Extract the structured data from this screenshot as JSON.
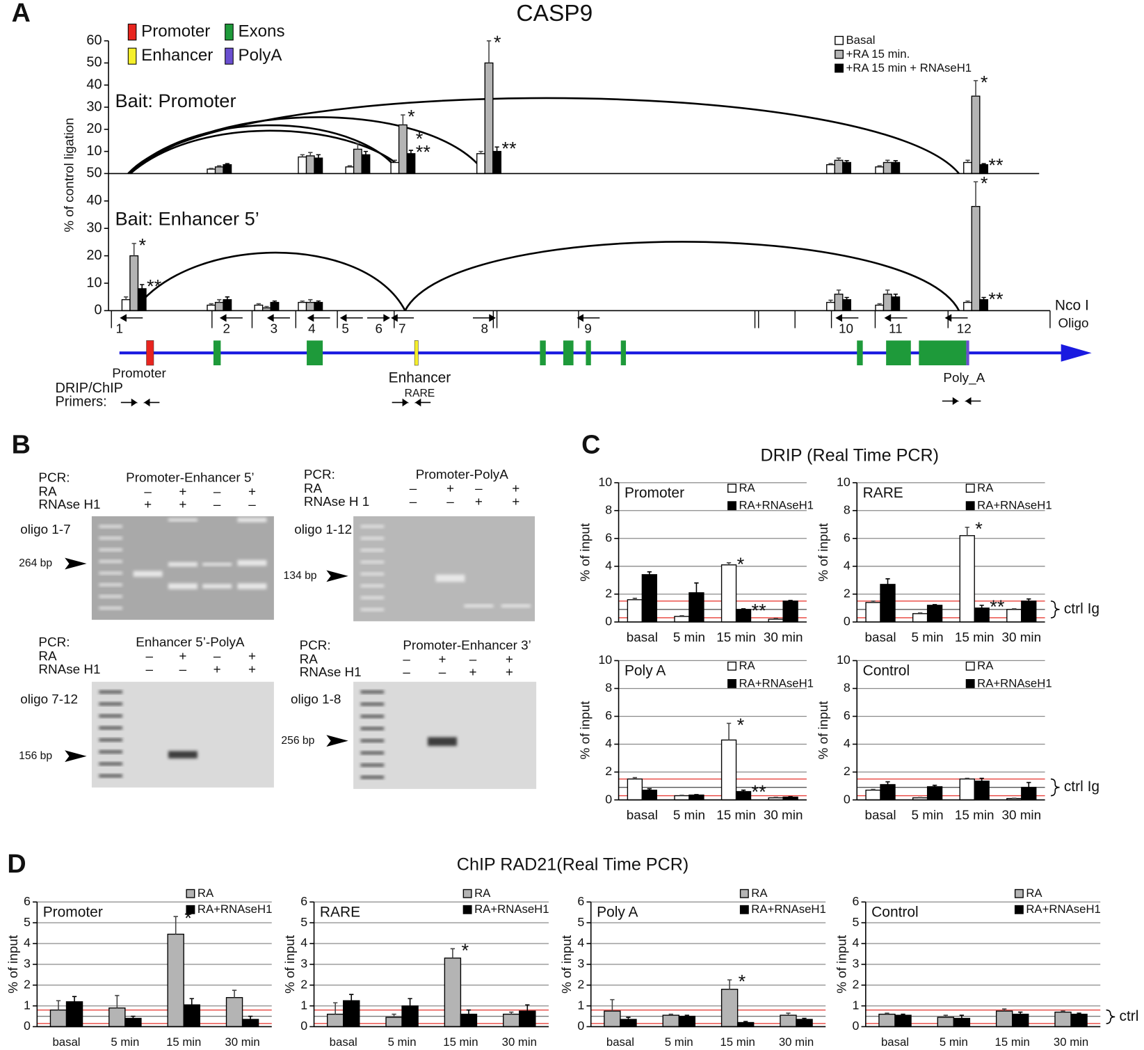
{
  "panel_labels": [
    "A",
    "B",
    "C",
    "D"
  ],
  "headings": {
    "A": "CASP9",
    "C": "DRIP (Real Time PCR)",
    "D": "ChIP RAD21(Real Time PCR)"
  },
  "chart_data": [
    {
      "type": "bar",
      "label": "Bait: Promoter",
      "y_label": "% of control ligation",
      "categories": [
        "1",
        "2",
        "3",
        "4",
        "5",
        "6",
        "7",
        "8",
        "9",
        "10",
        "11",
        "12"
      ],
      "ylim": [
        0,
        60
      ],
      "yticks": [
        10,
        20,
        30,
        40,
        50,
        60
      ],
      "grid": false,
      "series": [
        {
          "name": "Basal",
          "color": "#ffffff",
          "values": [
            null,
            2,
            null,
            7.5,
            3,
            null,
            5,
            9,
            null,
            4,
            3,
            5
          ],
          "errors": [
            null,
            0.3,
            null,
            1,
            0.5,
            null,
            1,
            1,
            null,
            0.5,
            0.5,
            1
          ]
        },
        {
          "name": "+RA 15 min.",
          "color": "#b4b4b4",
          "values": [
            null,
            3,
            null,
            8,
            11,
            null,
            22,
            50,
            null,
            6,
            5,
            35
          ],
          "errors": [
            null,
            0.5,
            null,
            1.5,
            2.5,
            null,
            4.5,
            10,
            null,
            1,
            1,
            7
          ]
        },
        {
          "name": "+RA 15 min + RNAseH1",
          "color": "#000000",
          "values": [
            null,
            4,
            null,
            7,
            8.5,
            null,
            9,
            10,
            null,
            5,
            5,
            4
          ],
          "errors": [
            null,
            0.5,
            null,
            1.5,
            1.5,
            null,
            1.5,
            2,
            null,
            0.8,
            0.8,
            0.5
          ]
        }
      ],
      "annotations": [
        {
          "text": "*",
          "x": "7",
          "series": "+RA 15 min."
        },
        {
          "text": "**",
          "x": "7",
          "series": "+RA 15 min + RNAseH1"
        },
        {
          "text": "*",
          "x": "7",
          "series": "+RA 15 min + RNAseH1"
        },
        {
          "text": "*",
          "x": "8",
          "series": "+RA 15 min."
        },
        {
          "text": "**",
          "x": "8",
          "series": "+RA 15 min + RNAseH1"
        },
        {
          "text": "*",
          "x": "12",
          "series": "+RA 15 min."
        },
        {
          "text": "**",
          "x": "12",
          "series": "+RA 15 min + RNAseH1"
        }
      ]
    },
    {
      "type": "bar",
      "label": "Bait: Enhancer 5’",
      "categories": [
        "1",
        "2",
        "3",
        "4",
        "5",
        "6",
        "7",
        "8",
        "9",
        "10",
        "11",
        "12"
      ],
      "ylim": [
        0,
        50
      ],
      "yticks": [
        0,
        10,
        20,
        30,
        40,
        50
      ],
      "grid": false,
      "series": [
        {
          "color": "#ffffff",
          "values": [
            4,
            2,
            2,
            3,
            null,
            null,
            null,
            null,
            null,
            3,
            2,
            3
          ],
          "errors": [
            1,
            0.5,
            0.5,
            0.5,
            null,
            null,
            null,
            null,
            null,
            0.8,
            0.5,
            0.5
          ]
        },
        {
          "color": "#b4b4b4",
          "values": [
            20,
            3,
            1,
            3,
            null,
            null,
            null,
            null,
            null,
            6,
            6,
            38
          ],
          "errors": [
            4.5,
            1,
            0.5,
            1,
            null,
            null,
            null,
            null,
            null,
            1.5,
            1.5,
            9
          ]
        },
        {
          "color": "#000000",
          "values": [
            8,
            4,
            3,
            3,
            null,
            null,
            null,
            null,
            null,
            4,
            5,
            4
          ],
          "errors": [
            1.5,
            1,
            0.5,
            0.5,
            null,
            null,
            null,
            null,
            null,
            0.8,
            1,
            0.8
          ]
        }
      ],
      "annotations": [
        {
          "text": "*",
          "x": "1",
          "series": 1
        },
        {
          "text": "**",
          "x": "1",
          "series": 2
        },
        {
          "text": "*",
          "x": "12",
          "series": 1
        },
        {
          "text": "**",
          "x": "12",
          "series": 2
        }
      ]
    },
    {
      "type": "bar",
      "label": "Promoter",
      "y_label": "% of input",
      "categories": [
        "basal",
        "5 min",
        "15 min",
        "30 min"
      ],
      "ylim": [
        0,
        10
      ],
      "yticks": [
        0,
        2,
        4,
        6,
        8,
        10
      ],
      "grid": true,
      "ref_lines": [
        {
          "value": 1.5,
          "color": "#e8403a"
        },
        {
          "value": 0.9,
          "color": "#555555"
        },
        {
          "value": 0.3,
          "color": "#e8403a"
        }
      ],
      "series": [
        {
          "name": "RA",
          "color": "#ffffff",
          "values": [
            1.6,
            0.4,
            4.1,
            0.2
          ],
          "errors": [
            0.1,
            0.05,
            0.15,
            0.05
          ]
        },
        {
          "name": "RA+RNAseH1",
          "color": "#000000",
          "values": [
            3.4,
            2.1,
            0.9,
            1.5
          ],
          "errors": [
            0.2,
            0.7,
            0.05,
            0.05
          ]
        }
      ],
      "annotations": [
        {
          "text": "*",
          "x": "15 min",
          "series": "RA"
        },
        {
          "text": "**",
          "x": "15 min",
          "series": "RA+RNAseH1"
        }
      ]
    },
    {
      "type": "bar",
      "label": "RARE",
      "y_label": "% of input",
      "ref_label": "ctrl Ig",
      "categories": [
        "basal",
        "5 min",
        "15 min",
        "30 min"
      ],
      "ylim": [
        0,
        10
      ],
      "yticks": [
        0,
        2,
        4,
        6,
        8,
        10
      ],
      "grid": true,
      "ref_lines": [
        {
          "value": 1.5,
          "color": "#e8403a"
        },
        {
          "value": 0.9,
          "color": "#555555"
        },
        {
          "value": 0.3,
          "color": "#e8403a"
        }
      ],
      "series": [
        {
          "name": "RA",
          "color": "#ffffff",
          "values": [
            1.4,
            0.6,
            6.2,
            0.9
          ],
          "errors": [
            0.1,
            0.05,
            0.6,
            0.05
          ]
        },
        {
          "name": "RA+RNAseH1",
          "color": "#000000",
          "values": [
            2.7,
            1.2,
            1.0,
            1.5
          ],
          "errors": [
            0.4,
            0.05,
            0.2,
            0.15
          ]
        }
      ],
      "annotations": [
        {
          "text": "*",
          "x": "15 min",
          "series": "RA"
        },
        {
          "text": "**",
          "x": "15 min",
          "series": "RA+RNAseH1"
        }
      ]
    },
    {
      "type": "bar",
      "label": "Poly A",
      "y_label": "% of input",
      "categories": [
        "basal",
        "5 min",
        "15 min",
        "30 min"
      ],
      "ylim": [
        0,
        10
      ],
      "yticks": [
        0,
        2,
        4,
        6,
        8,
        10
      ],
      "grid": true,
      "ref_lines": [
        {
          "value": 1.5,
          "color": "#e8403a"
        },
        {
          "value": 0.9,
          "color": "#555555"
        },
        {
          "value": 0.3,
          "color": "#e8403a"
        }
      ],
      "series": [
        {
          "name": "RA",
          "color": "#ffffff",
          "values": [
            1.5,
            0.3,
            4.3,
            0.15
          ],
          "errors": [
            0.1,
            0.03,
            1.2,
            0.03
          ]
        },
        {
          "name": "RA+RNAseH1",
          "color": "#000000",
          "values": [
            0.7,
            0.35,
            0.6,
            0.2
          ],
          "errors": [
            0.1,
            0.03,
            0.1,
            0.03
          ]
        }
      ],
      "annotations": [
        {
          "text": "*",
          "x": "15 min",
          "series": "RA"
        },
        {
          "text": "**",
          "x": "15 min",
          "series": "RA+RNAseH1"
        }
      ]
    },
    {
      "type": "bar",
      "label": "Control",
      "y_label": "% of input",
      "ref_label": "ctrl Ig",
      "categories": [
        "basal",
        "5 min",
        "15 min",
        "30 min"
      ],
      "ylim": [
        0,
        10
      ],
      "yticks": [
        0,
        2,
        4,
        6,
        8,
        10
      ],
      "grid": true,
      "ref_lines": [
        {
          "value": 1.5,
          "color": "#e8403a"
        },
        {
          "value": 0.9,
          "color": "#555555"
        },
        {
          "value": 0.3,
          "color": "#e8403a"
        }
      ],
      "series": [
        {
          "name": "RA",
          "color": "#ffffff",
          "values": [
            0.7,
            0.15,
            1.5,
            0.1
          ],
          "errors": [
            0.05,
            0.02,
            0.05,
            0.02
          ]
        },
        {
          "name": "RA+RNAseH1",
          "color": "#000000",
          "values": [
            1.1,
            0.95,
            1.35,
            0.9
          ],
          "errors": [
            0.2,
            0.1,
            0.2,
            0.35
          ]
        }
      ]
    },
    {
      "type": "bar",
      "label": "Promoter",
      "y_label": "% of input",
      "categories": [
        "basal",
        "5 min",
        "15 min",
        "30 min"
      ],
      "ylim": [
        0,
        6
      ],
      "yticks": [
        0,
        1,
        2,
        3,
        4,
        5,
        6
      ],
      "grid": true,
      "ref_lines": [
        {
          "value": 0.8,
          "color": "#e8403a"
        },
        {
          "value": 0.5,
          "color": "#777777"
        },
        {
          "value": 0.15,
          "color": "#e8403a"
        }
      ],
      "series": [
        {
          "name": "RA",
          "color": "#b4b4b4",
          "values": [
            0.8,
            0.9,
            4.45,
            1.4
          ],
          "errors": [
            0.45,
            0.6,
            0.85,
            0.35
          ]
        },
        {
          "name": "RA+RNAseH1",
          "color": "#000000",
          "values": [
            1.2,
            0.4,
            1.05,
            0.35
          ],
          "errors": [
            0.25,
            0.1,
            0.3,
            0.15
          ]
        }
      ],
      "annotations": [
        {
          "text": "*",
          "x": "15 min",
          "series": "RA"
        }
      ]
    },
    {
      "type": "bar",
      "label": "RARE",
      "y_label": "% of input",
      "categories": [
        "basal",
        "5 min",
        "15 min",
        "30 min"
      ],
      "ylim": [
        0,
        6
      ],
      "yticks": [
        0,
        1,
        2,
        3,
        4,
        5,
        6
      ],
      "grid": true,
      "ref_lines": [
        {
          "value": 0.8,
          "color": "#e8403a"
        },
        {
          "value": 0.5,
          "color": "#777777"
        },
        {
          "value": 0.15,
          "color": "#e8403a"
        }
      ],
      "series": [
        {
          "name": "RA",
          "color": "#b4b4b4",
          "values": [
            0.6,
            0.45,
            3.3,
            0.6
          ],
          "errors": [
            0.55,
            0.15,
            0.45,
            0.1
          ]
        },
        {
          "name": "RA+RNAseH1",
          "color": "#000000",
          "values": [
            1.25,
            1.0,
            0.6,
            0.75
          ],
          "errors": [
            0.3,
            0.35,
            0.2,
            0.3
          ]
        }
      ],
      "annotations": [
        {
          "text": "*",
          "x": "15 min",
          "series": "RA"
        }
      ]
    },
    {
      "type": "bar",
      "label": "Poly A",
      "y_label": "% of input",
      "categories": [
        "basal",
        "5 min",
        "15 min",
        "30 min"
      ],
      "ylim": [
        0,
        6
      ],
      "yticks": [
        0,
        1,
        2,
        3,
        4,
        5,
        6
      ],
      "grid": true,
      "ref_lines": [
        {
          "value": 0.8,
          "color": "#e8403a"
        },
        {
          "value": 0.5,
          "color": "#777777"
        },
        {
          "value": 0.15,
          "color": "#e8403a"
        }
      ],
      "series": [
        {
          "name": "RA",
          "color": "#b4b4b4",
          "values": [
            0.75,
            0.55,
            1.8,
            0.55
          ],
          "errors": [
            0.55,
            0.05,
            0.45,
            0.1
          ]
        },
        {
          "name": "RA+RNAseH1",
          "color": "#000000",
          "values": [
            0.35,
            0.5,
            0.2,
            0.35
          ],
          "errors": [
            0.1,
            0.05,
            0.05,
            0.05
          ]
        }
      ],
      "annotations": [
        {
          "text": "*",
          "x": "15 min",
          "series": "RA"
        }
      ]
    },
    {
      "type": "bar",
      "label": "Control",
      "y_label": "% of input",
      "ref_label": "ctrl Ig",
      "categories": [
        "basal",
        "5 min",
        "15 min",
        "30 min"
      ],
      "ylim": [
        0,
        6
      ],
      "yticks": [
        0,
        1,
        2,
        3,
        4,
        5,
        6
      ],
      "grid": true,
      "ref_lines": [
        {
          "value": 0.8,
          "color": "#e8403a"
        },
        {
          "value": 0.5,
          "color": "#777777"
        },
        {
          "value": 0.15,
          "color": "#e8403a"
        }
      ],
      "series": [
        {
          "name": "RA",
          "color": "#b4b4b4",
          "values": [
            0.6,
            0.45,
            0.75,
            0.7
          ],
          "errors": [
            0.05,
            0.1,
            0.1,
            0.05
          ]
        },
        {
          "name": "RA+RNAseH1",
          "color": "#000000",
          "values": [
            0.55,
            0.4,
            0.6,
            0.6
          ],
          "errors": [
            0.05,
            0.15,
            0.1,
            0.05
          ]
        }
      ]
    }
  ],
  "gene_map": {
    "regions": [
      {
        "name": "Promoter",
        "color": "#e8251f"
      },
      {
        "name": "Enhancer",
        "color": "#f5ef2a"
      },
      {
        "name": "Exons",
        "color": "#1e9a3a"
      },
      {
        "name": "PolyA",
        "color": "#6a4fd0"
      }
    ],
    "axis_labels": [
      "Nco I",
      "Oligo"
    ],
    "features": [
      "Promoter",
      "Enhancer",
      "RARE",
      "Poly_A"
    ],
    "primers_label": [
      "DRIP/ChIP",
      "Primers:"
    ]
  },
  "gels": [
    {
      "pcr": "PCR:",
      "title": "Promoter-Enhancer 5’",
      "rows": [
        {
          "name": "RA",
          "signs": [
            "–",
            "+",
            "–",
            "+"
          ]
        },
        {
          "name": "RNAse H1",
          "signs": [
            "+",
            "+",
            "–",
            "–"
          ]
        }
      ],
      "oligo": "oligo 1-7",
      "size": "264 bp"
    },
    {
      "pcr": "PCR:",
      "title": "Promoter-PolyA",
      "rows": [
        {
          "name": "RA",
          "signs": [
            "–",
            "+",
            "–",
            "+"
          ]
        },
        {
          "name": "RNAse H 1",
          "signs": [
            "–",
            "–",
            "+",
            "+"
          ]
        }
      ],
      "oligo": "oligo 1-12",
      "size": "134 bp"
    },
    {
      "pcr": "PCR:",
      "title": "Enhancer 5’-PolyA",
      "rows": [
        {
          "name": "RA",
          "signs": [
            "–",
            "+",
            "–",
            "+"
          ]
        },
        {
          "name": "RNAse H1",
          "signs": [
            "–",
            "–",
            "+",
            "+"
          ]
        }
      ],
      "oligo": "oligo 7-12",
      "size": "156 bp"
    },
    {
      "pcr": "PCR:",
      "title": "Promoter-Enhancer 3’",
      "rows": [
        {
          "name": "RA",
          "signs": [
            "–",
            "+",
            "–",
            "+"
          ]
        },
        {
          "name": "RNAse H1",
          "signs": [
            "–",
            "–",
            "+",
            "+"
          ]
        }
      ],
      "oligo": "oligo 1-8",
      "size": "256 bp"
    }
  ]
}
